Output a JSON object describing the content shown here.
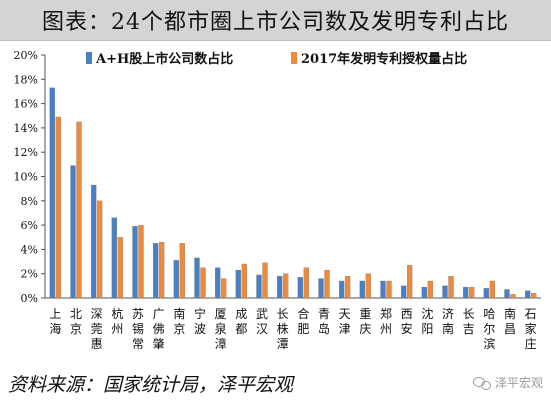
{
  "page": {
    "title": "图表：24个都市圈上市公司数及发明专利占比",
    "source": "资料来源：国家统计局，泽平宏观",
    "watermark": "泽平宏观",
    "watermark_icon": "wechat-icon"
  },
  "chart_data": {
    "type": "bar",
    "title": "",
    "xlabel": "",
    "ylabel": "",
    "ylim": [
      0,
      0.2
    ],
    "yticks": [
      0,
      0.02,
      0.04,
      0.06,
      0.08,
      0.1,
      0.12,
      0.14,
      0.16,
      0.18,
      0.2
    ],
    "ytick_labels": [
      "0%",
      "2%",
      "4%",
      "6%",
      "8%",
      "10%",
      "12%",
      "14%",
      "16%",
      "18%",
      "20%"
    ],
    "legend_position": "top",
    "grid": false,
    "categories": [
      "上海",
      "北京",
      "深莞惠",
      "杭州",
      "苏锡常",
      "广佛肇",
      "南京",
      "宁波",
      "厦泉漳",
      "成都",
      "武汉",
      "长株潭",
      "合肥",
      "青岛",
      "天津",
      "重庆",
      "郑州",
      "西安",
      "沈阳",
      "济南",
      "长吉",
      "哈尔滨",
      "南昌",
      "石家庄"
    ],
    "series": [
      {
        "name": "A+H股上市公司数占比",
        "color": "#4a7fc1",
        "values": [
          0.173,
          0.109,
          0.093,
          0.066,
          0.059,
          0.045,
          0.031,
          0.033,
          0.025,
          0.023,
          0.019,
          0.018,
          0.017,
          0.016,
          0.014,
          0.014,
          0.014,
          0.01,
          0.009,
          0.01,
          0.009,
          0.008,
          0.007,
          0.006
        ]
      },
      {
        "name": "2017年发明专利授权量占比",
        "color": "#ee8a3c",
        "values": [
          0.149,
          0.145,
          0.08,
          0.05,
          0.06,
          0.046,
          0.045,
          0.025,
          0.016,
          0.028,
          0.029,
          0.02,
          0.025,
          0.023,
          0.018,
          0.02,
          0.014,
          0.027,
          0.014,
          0.018,
          0.009,
          0.014,
          0.003,
          0.004
        ]
      }
    ]
  }
}
